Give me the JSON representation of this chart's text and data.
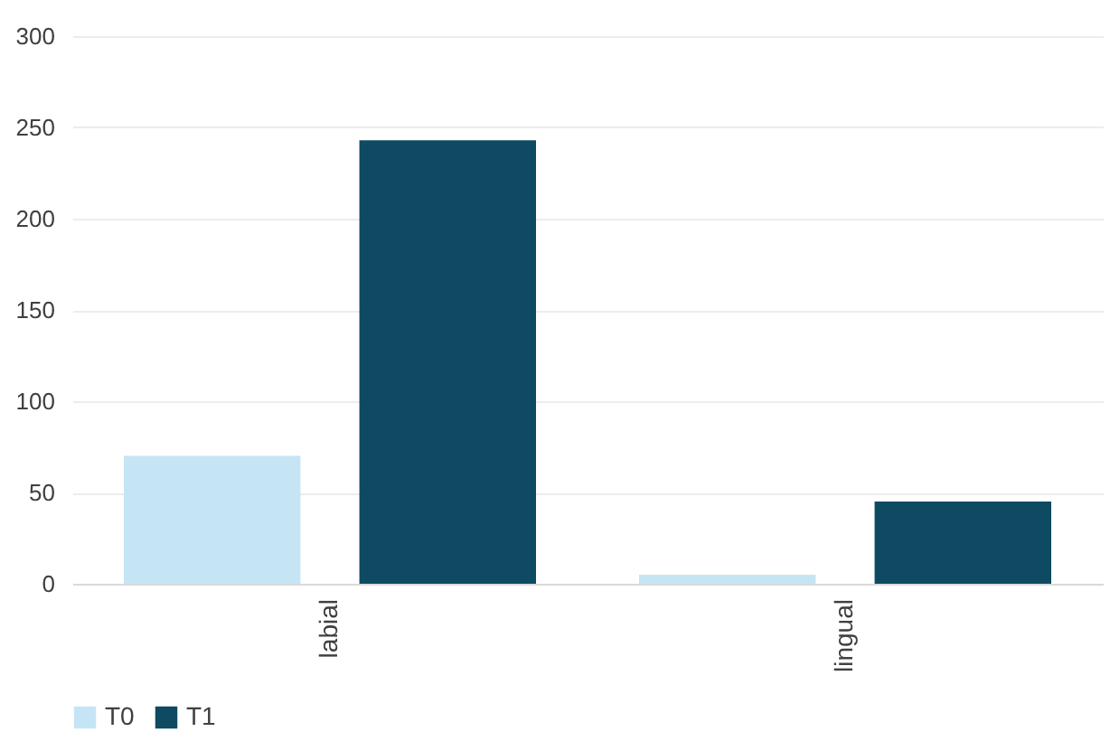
{
  "chart_data": {
    "type": "bar",
    "categories": [
      "labial",
      "lingual"
    ],
    "series": [
      {
        "name": "T0",
        "color": "#c5e5f5",
        "values": [
          70,
          5
        ]
      },
      {
        "name": "T1",
        "color": "#0f4a63",
        "values": [
          243,
          45
        ]
      }
    ],
    "ylim": [
      0,
      300
    ],
    "yticks": [
      0,
      50,
      100,
      150,
      200,
      250,
      300
    ],
    "grid": "y",
    "legend": "bottom"
  }
}
